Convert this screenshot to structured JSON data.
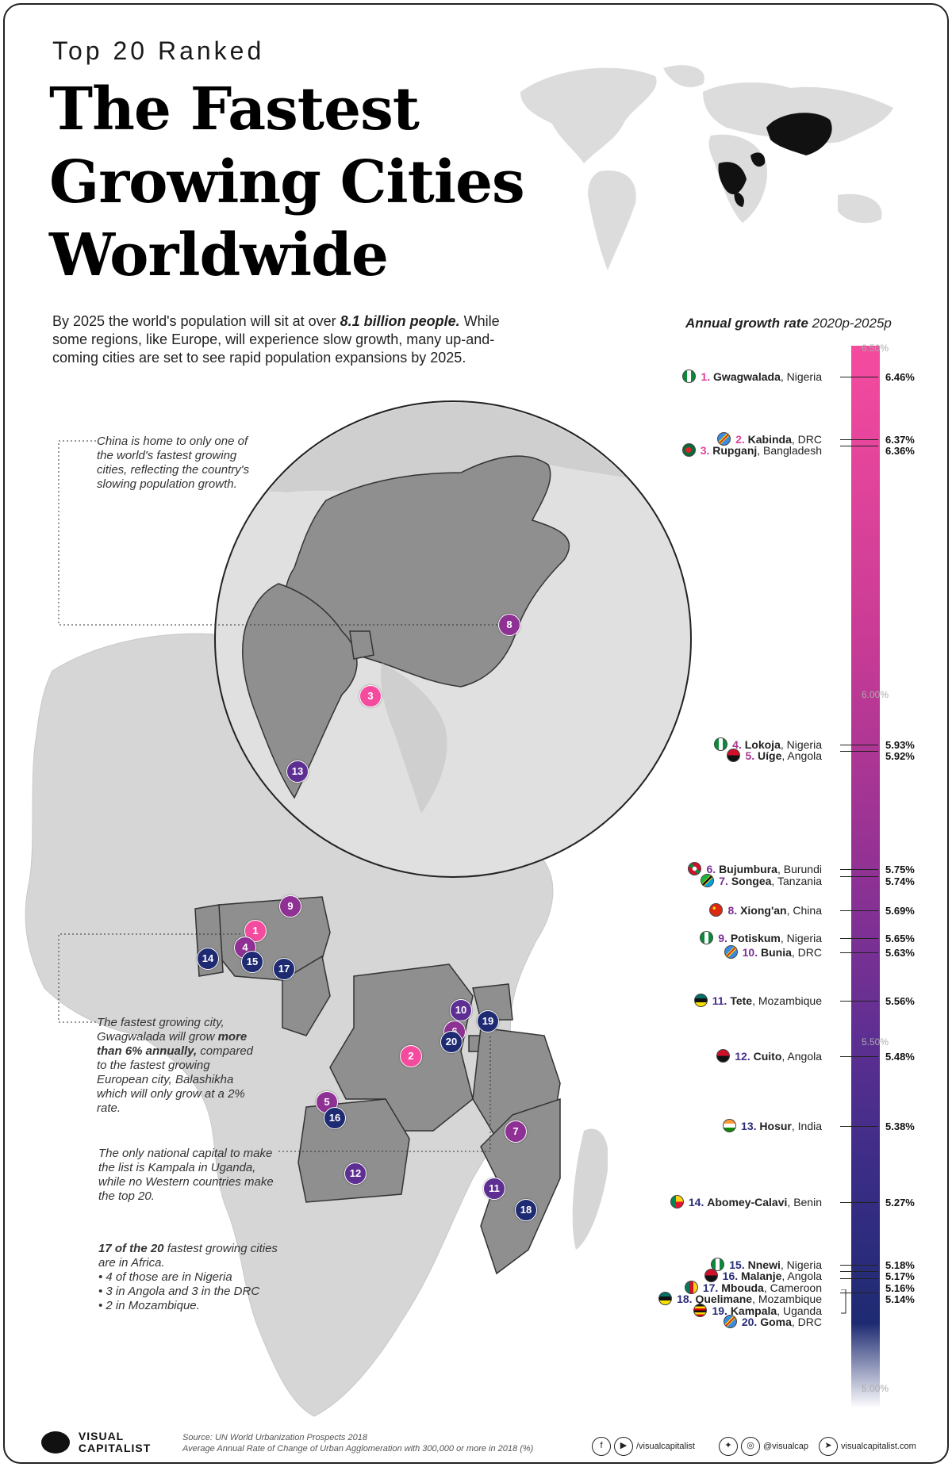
{
  "header": {
    "pre_title": "Top 20 Ranked",
    "title_line1": "The Fastest",
    "title_line2": "Growing Cities",
    "title_line3": "Worldwide"
  },
  "intro": {
    "text_a": "By 2025 the world's population will sit at over ",
    "highlight": "8.1 billion people.",
    "text_b": " While some regions, like Europe, will experience slow growth, many up-and-coming cities are set to see rapid population expansions by 2025."
  },
  "notes": {
    "china": "China is home to only one of the world's fastest growing cities, reflecting the country's slowing population growth.",
    "gwag_a": "The fastest growing city, Gwagwalada will grow ",
    "gwag_b": "more than 6% annually,",
    "gwag_c": " compared to the fastest growing European city, Balashikha which will only grow at a 2% rate.",
    "kampala": "The only national capital to make the list is Kampala in Uganda, while no Western countries make the top 20."
  },
  "summary": {
    "head_bold": "17 of the 20",
    "head_rest": " fastest growing cities are in Africa.",
    "items": [
      "4 of those are in Nigeria",
      "3 in Angola and 3 in the DRC",
      "2 in Mozambique."
    ]
  },
  "chart_data": {
    "type": "bar",
    "title": "Annual growth rate",
    "subtitle": "2020p-2025p",
    "ylim": [
      5.0,
      6.5
    ],
    "ticks": [
      "6.50%",
      "6.00%",
      "5.50%",
      "5.00%"
    ],
    "cities": [
      {
        "rank": "1.",
        "city": "Gwagwalada",
        "country": "Nigeria",
        "value": 6.46,
        "label": "6.46%",
        "flag": "nigeria"
      },
      {
        "rank": "2.",
        "city": "Kabinda",
        "country": "DRC",
        "value": 6.37,
        "label": "6.37%",
        "flag": "drc"
      },
      {
        "rank": "3.",
        "city": "Rupganj",
        "country": "Bangladesh",
        "value": 6.36,
        "label": "6.36%",
        "flag": "bangladesh"
      },
      {
        "rank": "4.",
        "city": "Lokoja",
        "country": "Nigeria",
        "value": 5.93,
        "label": "5.93%",
        "flag": "nigeria"
      },
      {
        "rank": "5.",
        "city": "Uíge",
        "country": "Angola",
        "value": 5.92,
        "label": "5.92%",
        "flag": "angola"
      },
      {
        "rank": "6.",
        "city": "Bujumbura",
        "country": "Burundi",
        "value": 5.75,
        "label": "5.75%",
        "flag": "burundi"
      },
      {
        "rank": "7.",
        "city": "Songea",
        "country": "Tanzania",
        "value": 5.74,
        "label": "5.74%",
        "flag": "tanzania"
      },
      {
        "rank": "8.",
        "city": "Xiong'an",
        "country": "China",
        "value": 5.69,
        "label": "5.69%",
        "flag": "china"
      },
      {
        "rank": "9.",
        "city": "Potiskum",
        "country": "Nigeria",
        "value": 5.65,
        "label": "5.65%",
        "flag": "nigeria"
      },
      {
        "rank": "10.",
        "city": "Bunia",
        "country": "DRC",
        "value": 5.63,
        "label": "5.63%",
        "flag": "drc"
      },
      {
        "rank": "11.",
        "city": "Tete",
        "country": "Mozambique",
        "value": 5.56,
        "label": "5.56%",
        "flag": "mozambique"
      },
      {
        "rank": "12.",
        "city": "Cuito",
        "country": "Angola",
        "value": 5.48,
        "label": "5.48%",
        "flag": "angola"
      },
      {
        "rank": "13.",
        "city": "Hosur",
        "country": "India",
        "value": 5.38,
        "label": "5.38%",
        "flag": "india"
      },
      {
        "rank": "14.",
        "city": "Abomey-Calavi",
        "country": "Benin",
        "value": 5.27,
        "label": "5.27%",
        "flag": "benin"
      },
      {
        "rank": "15.",
        "city": "Nnewi",
        "country": "Nigeria",
        "value": 5.18,
        "label": "5.18%",
        "flag": "nigeria"
      },
      {
        "rank": "16.",
        "city": "Malanje",
        "country": "Angola",
        "value": 5.17,
        "label": "5.17%",
        "flag": "angola"
      },
      {
        "rank": "17.",
        "city": "Mbouda",
        "country": "Cameroon",
        "value": 5.16,
        "label": "5.16%",
        "flag": "cameroon"
      },
      {
        "rank": "18.",
        "city": "Quelimane",
        "country": "Mozambique",
        "value": 5.14,
        "label": "5.14%",
        "flag": "mozambique"
      },
      {
        "rank": "19.",
        "city": "Kampala",
        "country": "Uganda",
        "value": 5.14,
        "label": "",
        "flag": "uganda"
      },
      {
        "rank": "20.",
        "city": "Goma",
        "country": "DRC",
        "value": 5.14,
        "label": "",
        "flag": "drc"
      }
    ]
  },
  "map_pins": [
    "1",
    "2",
    "3",
    "4",
    "5",
    "6",
    "7",
    "8",
    "9",
    "10",
    "11",
    "12",
    "13",
    "14",
    "15",
    "16",
    "17",
    "18",
    "19",
    "20"
  ],
  "colors": {
    "pink": "#f54b9f",
    "magenta": "#c83b95",
    "purple": "#5e2f92",
    "navy": "#1e2b72",
    "land": "#d9d9d9",
    "highlight": "#8a8a8a"
  },
  "footer": {
    "logo_line1": "VISUAL",
    "logo_line2": "CAPITALIST",
    "source": "Source: UN World Urbanization Prospects 2018",
    "source_note": "Average Annual Rate of Change of Urban Agglomeration with 300,000 or more in 2018 (%)",
    "social1": "/visualcapitalist",
    "social2": "@visualcap",
    "social3": "visualcapitalist.com"
  }
}
